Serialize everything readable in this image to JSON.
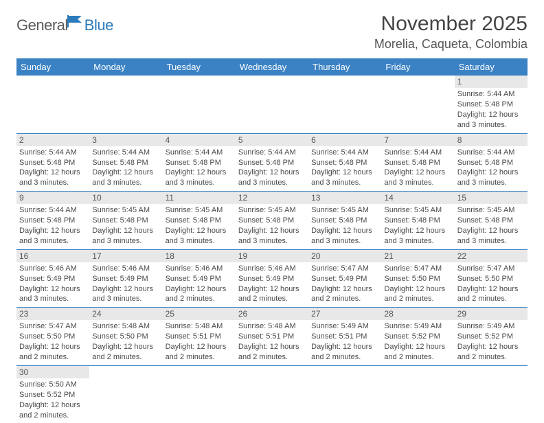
{
  "logo": {
    "part1": "General",
    "part2": "Blue"
  },
  "title": "November 2025",
  "location": "Morelia, Caqueta, Colombia",
  "colors": {
    "header_bg": "#3b82c4",
    "header_fg": "#ffffff",
    "row_border": "#3b82c4",
    "daynum_bg": "#e8e8e8",
    "logo_gray": "#5a5a5a",
    "logo_blue": "#2b7bbd",
    "text": "#4a4a4a"
  },
  "weekdays": [
    "Sunday",
    "Monday",
    "Tuesday",
    "Wednesday",
    "Thursday",
    "Friday",
    "Saturday"
  ],
  "weeks": [
    [
      null,
      null,
      null,
      null,
      null,
      null,
      {
        "n": "1",
        "sr": "Sunrise: 5:44 AM",
        "ss": "Sunset: 5:48 PM",
        "d1": "Daylight: 12 hours",
        "d2": "and 3 minutes."
      }
    ],
    [
      {
        "n": "2",
        "sr": "Sunrise: 5:44 AM",
        "ss": "Sunset: 5:48 PM",
        "d1": "Daylight: 12 hours",
        "d2": "and 3 minutes."
      },
      {
        "n": "3",
        "sr": "Sunrise: 5:44 AM",
        "ss": "Sunset: 5:48 PM",
        "d1": "Daylight: 12 hours",
        "d2": "and 3 minutes."
      },
      {
        "n": "4",
        "sr": "Sunrise: 5:44 AM",
        "ss": "Sunset: 5:48 PM",
        "d1": "Daylight: 12 hours",
        "d2": "and 3 minutes."
      },
      {
        "n": "5",
        "sr": "Sunrise: 5:44 AM",
        "ss": "Sunset: 5:48 PM",
        "d1": "Daylight: 12 hours",
        "d2": "and 3 minutes."
      },
      {
        "n": "6",
        "sr": "Sunrise: 5:44 AM",
        "ss": "Sunset: 5:48 PM",
        "d1": "Daylight: 12 hours",
        "d2": "and 3 minutes."
      },
      {
        "n": "7",
        "sr": "Sunrise: 5:44 AM",
        "ss": "Sunset: 5:48 PM",
        "d1": "Daylight: 12 hours",
        "d2": "and 3 minutes."
      },
      {
        "n": "8",
        "sr": "Sunrise: 5:44 AM",
        "ss": "Sunset: 5:48 PM",
        "d1": "Daylight: 12 hours",
        "d2": "and 3 minutes."
      }
    ],
    [
      {
        "n": "9",
        "sr": "Sunrise: 5:44 AM",
        "ss": "Sunset: 5:48 PM",
        "d1": "Daylight: 12 hours",
        "d2": "and 3 minutes."
      },
      {
        "n": "10",
        "sr": "Sunrise: 5:45 AM",
        "ss": "Sunset: 5:48 PM",
        "d1": "Daylight: 12 hours",
        "d2": "and 3 minutes."
      },
      {
        "n": "11",
        "sr": "Sunrise: 5:45 AM",
        "ss": "Sunset: 5:48 PM",
        "d1": "Daylight: 12 hours",
        "d2": "and 3 minutes."
      },
      {
        "n": "12",
        "sr": "Sunrise: 5:45 AM",
        "ss": "Sunset: 5:48 PM",
        "d1": "Daylight: 12 hours",
        "d2": "and 3 minutes."
      },
      {
        "n": "13",
        "sr": "Sunrise: 5:45 AM",
        "ss": "Sunset: 5:48 PM",
        "d1": "Daylight: 12 hours",
        "d2": "and 3 minutes."
      },
      {
        "n": "14",
        "sr": "Sunrise: 5:45 AM",
        "ss": "Sunset: 5:48 PM",
        "d1": "Daylight: 12 hours",
        "d2": "and 3 minutes."
      },
      {
        "n": "15",
        "sr": "Sunrise: 5:45 AM",
        "ss": "Sunset: 5:48 PM",
        "d1": "Daylight: 12 hours",
        "d2": "and 3 minutes."
      }
    ],
    [
      {
        "n": "16",
        "sr": "Sunrise: 5:46 AM",
        "ss": "Sunset: 5:49 PM",
        "d1": "Daylight: 12 hours",
        "d2": "and 3 minutes."
      },
      {
        "n": "17",
        "sr": "Sunrise: 5:46 AM",
        "ss": "Sunset: 5:49 PM",
        "d1": "Daylight: 12 hours",
        "d2": "and 3 minutes."
      },
      {
        "n": "18",
        "sr": "Sunrise: 5:46 AM",
        "ss": "Sunset: 5:49 PM",
        "d1": "Daylight: 12 hours",
        "d2": "and 2 minutes."
      },
      {
        "n": "19",
        "sr": "Sunrise: 5:46 AM",
        "ss": "Sunset: 5:49 PM",
        "d1": "Daylight: 12 hours",
        "d2": "and 2 minutes."
      },
      {
        "n": "20",
        "sr": "Sunrise: 5:47 AM",
        "ss": "Sunset: 5:49 PM",
        "d1": "Daylight: 12 hours",
        "d2": "and 2 minutes."
      },
      {
        "n": "21",
        "sr": "Sunrise: 5:47 AM",
        "ss": "Sunset: 5:50 PM",
        "d1": "Daylight: 12 hours",
        "d2": "and 2 minutes."
      },
      {
        "n": "22",
        "sr": "Sunrise: 5:47 AM",
        "ss": "Sunset: 5:50 PM",
        "d1": "Daylight: 12 hours",
        "d2": "and 2 minutes."
      }
    ],
    [
      {
        "n": "23",
        "sr": "Sunrise: 5:47 AM",
        "ss": "Sunset: 5:50 PM",
        "d1": "Daylight: 12 hours",
        "d2": "and 2 minutes."
      },
      {
        "n": "24",
        "sr": "Sunrise: 5:48 AM",
        "ss": "Sunset: 5:50 PM",
        "d1": "Daylight: 12 hours",
        "d2": "and 2 minutes."
      },
      {
        "n": "25",
        "sr": "Sunrise: 5:48 AM",
        "ss": "Sunset: 5:51 PM",
        "d1": "Daylight: 12 hours",
        "d2": "and 2 minutes."
      },
      {
        "n": "26",
        "sr": "Sunrise: 5:48 AM",
        "ss": "Sunset: 5:51 PM",
        "d1": "Daylight: 12 hours",
        "d2": "and 2 minutes."
      },
      {
        "n": "27",
        "sr": "Sunrise: 5:49 AM",
        "ss": "Sunset: 5:51 PM",
        "d1": "Daylight: 12 hours",
        "d2": "and 2 minutes."
      },
      {
        "n": "28",
        "sr": "Sunrise: 5:49 AM",
        "ss": "Sunset: 5:52 PM",
        "d1": "Daylight: 12 hours",
        "d2": "and 2 minutes."
      },
      {
        "n": "29",
        "sr": "Sunrise: 5:49 AM",
        "ss": "Sunset: 5:52 PM",
        "d1": "Daylight: 12 hours",
        "d2": "and 2 minutes."
      }
    ],
    [
      {
        "n": "30",
        "sr": "Sunrise: 5:50 AM",
        "ss": "Sunset: 5:52 PM",
        "d1": "Daylight: 12 hours",
        "d2": "and 2 minutes."
      },
      null,
      null,
      null,
      null,
      null,
      null
    ]
  ]
}
